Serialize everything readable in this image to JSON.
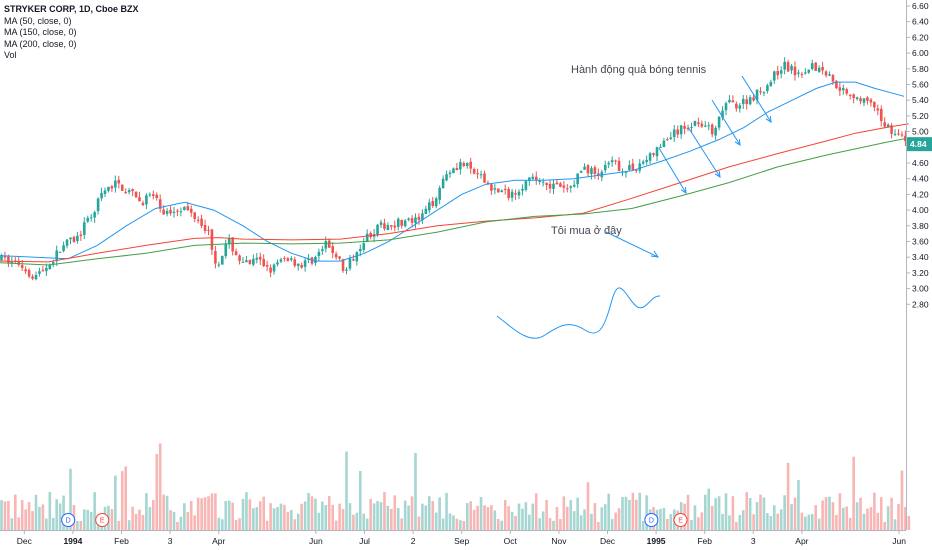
{
  "legend": {
    "title": "STRYKER CORP, 1D, Cboe BZX",
    "ma50": "MA (50, close, 0)",
    "ma150": "MA (150, close, 0)",
    "ma200": "MA (200, close, 0)",
    "vol": "Vol"
  },
  "chart_data": {
    "type": "candlestick",
    "title": "STRYKER CORP, 1D, Cboe BZX",
    "ylim": [
      2.7,
      6.65
    ],
    "yticks": [
      "2.80",
      "3.00",
      "3.20",
      "3.40",
      "3.60",
      "3.80",
      "4.00",
      "4.20",
      "4.40",
      "4.60",
      "4.80",
      "5.00",
      "5.20",
      "5.40",
      "5.60",
      "5.80",
      "6.00",
      "6.20",
      "6.40",
      "6.60"
    ],
    "xtick_labels": [
      {
        "label": "Dec",
        "pos": 0.5
      },
      {
        "label": "1994",
        "pos": 1.5
      },
      {
        "label": "Feb",
        "pos": 2.5
      },
      {
        "label": "3",
        "pos": 3.5
      },
      {
        "label": "Apr",
        "pos": 4.5
      },
      {
        "label": "Jun",
        "pos": 6.5
      },
      {
        "label": "Jul",
        "pos": 7.5
      },
      {
        "label": "2",
        "pos": 8.5
      },
      {
        "label": "Sep",
        "pos": 9.5
      },
      {
        "label": "Oct",
        "pos": 10.5
      },
      {
        "label": "Nov",
        "pos": 11.5
      },
      {
        "label": "Dec",
        "pos": 12.5
      },
      {
        "label": "1995",
        "pos": 13.5
      },
      {
        "label": "Feb",
        "pos": 14.5
      },
      {
        "label": "3",
        "pos": 15.5
      },
      {
        "label": "Apr",
        "pos": 16.5
      },
      {
        "label": "Jun",
        "pos": 18.5
      }
    ],
    "price_anchors": [
      [
        0,
        3.38
      ],
      [
        0.4,
        3.32
      ],
      [
        0.7,
        3.15
      ],
      [
        1.0,
        3.3
      ],
      [
        1.3,
        3.55
      ],
      [
        1.6,
        3.65
      ],
      [
        1.9,
        3.95
      ],
      [
        2.1,
        4.2
      ],
      [
        2.4,
        4.35
      ],
      [
        2.7,
        4.2
      ],
      [
        2.9,
        4.1
      ],
      [
        3.1,
        4.2
      ],
      [
        3.4,
        3.95
      ],
      [
        3.7,
        4.05
      ],
      [
        4.1,
        3.9
      ],
      [
        4.3,
        3.7
      ],
      [
        4.45,
        3.3
      ],
      [
        4.7,
        3.6
      ],
      [
        5.0,
        3.3
      ],
      [
        5.3,
        3.35
      ],
      [
        5.6,
        3.25
      ],
      [
        5.9,
        3.4
      ],
      [
        6.2,
        3.3
      ],
      [
        6.5,
        3.4
      ],
      [
        6.7,
        3.55
      ],
      [
        6.9,
        3.45
      ],
      [
        7.1,
        3.2
      ],
      [
        7.3,
        3.45
      ],
      [
        7.5,
        3.65
      ],
      [
        7.8,
        3.78
      ],
      [
        8.2,
        3.85
      ],
      [
        8.6,
        3.85
      ],
      [
        8.9,
        4.1
      ],
      [
        9.2,
        4.5
      ],
      [
        9.5,
        4.6
      ],
      [
        9.8,
        4.45
      ],
      [
        10.2,
        4.25
      ],
      [
        10.5,
        4.2
      ],
      [
        10.8,
        4.35
      ],
      [
        11.1,
        4.4
      ],
      [
        11.4,
        4.3
      ],
      [
        11.7,
        4.25
      ],
      [
        12.0,
        4.55
      ],
      [
        12.3,
        4.45
      ],
      [
        12.6,
        4.6
      ],
      [
        12.9,
        4.5
      ],
      [
        13.2,
        4.6
      ],
      [
        13.5,
        4.75
      ],
      [
        13.8,
        4.95
      ],
      [
        14.1,
        5.05
      ],
      [
        14.4,
        5.15
      ],
      [
        14.7,
        4.95
      ],
      [
        14.9,
        5.35
      ],
      [
        15.2,
        5.35
      ],
      [
        15.5,
        5.45
      ],
      [
        15.8,
        5.6
      ],
      [
        16.1,
        5.85
      ],
      [
        16.4,
        5.75
      ],
      [
        16.7,
        5.85
      ],
      [
        17.0,
        5.75
      ],
      [
        17.3,
        5.55
      ],
      [
        17.6,
        5.45
      ],
      [
        17.9,
        5.35
      ],
      [
        18.2,
        5.1
      ],
      [
        18.5,
        4.95
      ],
      [
        18.7,
        4.84
      ]
    ],
    "ma_lines": [
      {
        "name": "MA (50, close, 0)",
        "color": "#2196f3",
        "points": [
          [
            0,
            3.42
          ],
          [
            1.4,
            3.38
          ],
          [
            2.0,
            3.55
          ],
          [
            2.6,
            3.8
          ],
          [
            3.2,
            4.02
          ],
          [
            3.8,
            4.1
          ],
          [
            4.4,
            4.0
          ],
          [
            5.0,
            3.8
          ],
          [
            5.5,
            3.6
          ],
          [
            6.0,
            3.45
          ],
          [
            6.5,
            3.35
          ],
          [
            7.0,
            3.35
          ],
          [
            7.5,
            3.45
          ],
          [
            8.0,
            3.6
          ],
          [
            8.5,
            3.8
          ],
          [
            9.0,
            4.0
          ],
          [
            9.5,
            4.2
          ],
          [
            10.0,
            4.33
          ],
          [
            10.6,
            4.38
          ],
          [
            11.2,
            4.38
          ],
          [
            11.8,
            4.4
          ],
          [
            12.4,
            4.45
          ],
          [
            13.0,
            4.5
          ],
          [
            13.6,
            4.62
          ],
          [
            14.2,
            4.75
          ],
          [
            14.8,
            4.9
          ],
          [
            15.3,
            5.05
          ],
          [
            15.8,
            5.25
          ],
          [
            16.3,
            5.4
          ],
          [
            16.8,
            5.55
          ],
          [
            17.2,
            5.63
          ],
          [
            17.6,
            5.63
          ],
          [
            18.0,
            5.55
          ],
          [
            18.6,
            5.45
          ]
        ]
      },
      {
        "name": "MA (150, close, 0)",
        "color": "#f44336",
        "points": [
          [
            0,
            3.35
          ],
          [
            1.0,
            3.34
          ],
          [
            2.0,
            3.45
          ],
          [
            3.0,
            3.55
          ],
          [
            4.0,
            3.64
          ],
          [
            4.5,
            3.65
          ],
          [
            5.0,
            3.63
          ],
          [
            6.0,
            3.62
          ],
          [
            7.0,
            3.63
          ],
          [
            8.0,
            3.7
          ],
          [
            9.0,
            3.8
          ],
          [
            10.0,
            3.86
          ],
          [
            11.0,
            3.9
          ],
          [
            12.0,
            3.96
          ],
          [
            13.0,
            4.15
          ],
          [
            14.0,
            4.35
          ],
          [
            15.0,
            4.55
          ],
          [
            16.0,
            4.72
          ],
          [
            17.0,
            4.88
          ],
          [
            17.6,
            4.98
          ],
          [
            18.2,
            5.05
          ],
          [
            18.7,
            5.1
          ]
        ]
      },
      {
        "name": "MA (200, close, 0)",
        "color": "#43a047",
        "points": [
          [
            0,
            3.33
          ],
          [
            1.0,
            3.3
          ],
          [
            2.0,
            3.38
          ],
          [
            3.0,
            3.45
          ],
          [
            4.0,
            3.55
          ],
          [
            5.0,
            3.58
          ],
          [
            6.0,
            3.57
          ],
          [
            7.0,
            3.58
          ],
          [
            8.0,
            3.62
          ],
          [
            9.0,
            3.72
          ],
          [
            10.0,
            3.85
          ],
          [
            11.0,
            3.92
          ],
          [
            12.0,
            3.95
          ],
          [
            13.0,
            4.02
          ],
          [
            14.0,
            4.18
          ],
          [
            15.0,
            4.35
          ],
          [
            16.0,
            4.55
          ],
          [
            17.0,
            4.7
          ],
          [
            17.6,
            4.78
          ],
          [
            18.2,
            4.86
          ],
          [
            18.7,
            4.92
          ]
        ]
      }
    ],
    "annotations": [
      {
        "text": "Hành động quả bóng tennis"
      },
      {
        "text": "Tôi mua ở đây"
      }
    ],
    "last_price": "4.84",
    "events": [
      {
        "label": "D",
        "pos": 1.3,
        "color": "#2962ff"
      },
      {
        "label": "E",
        "pos": 2.0,
        "color": "#f44336"
      },
      {
        "label": "D",
        "pos": 13.3,
        "color": "#2962ff"
      },
      {
        "label": "E",
        "pos": 13.9,
        "color": "#f44336"
      }
    ],
    "colors": {
      "up": "#26a69a",
      "down": "#ef5350",
      "vol_up": "#a5d6d2",
      "vol_down": "#f7b6b4",
      "axis": "#b2b5be",
      "price_tag": "#26a69a"
    }
  }
}
